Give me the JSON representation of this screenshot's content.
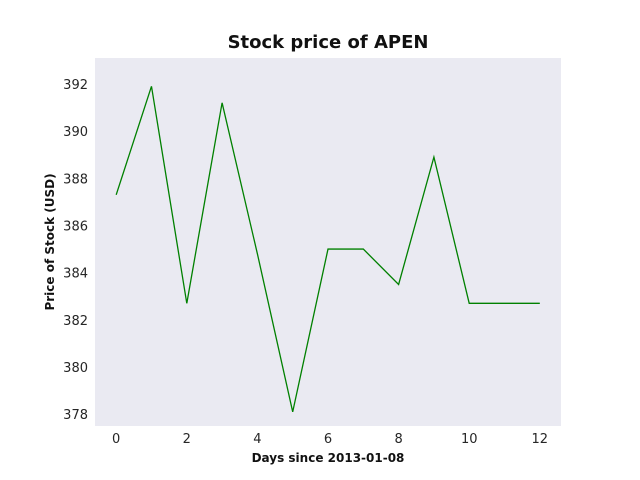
{
  "chart_data": {
    "type": "line",
    "title": "Stock price of APEN",
    "xlabel": "Days since 2013-01-08",
    "ylabel": "Price of Stock (USD)",
    "x": [
      0,
      1,
      2,
      3,
      4,
      5,
      6,
      7,
      8,
      9,
      10,
      11,
      12
    ],
    "series": [
      {
        "values": [
          387.3,
          391.9,
          382.7,
          391.2,
          384.8,
          378.1,
          385.0,
          385.0,
          383.5,
          388.9,
          382.7,
          382.7,
          382.7
        ],
        "color": "#008000"
      }
    ],
    "xlim": [
      -0.6,
      12.6
    ],
    "ylim": [
      377.5,
      393.1
    ],
    "xticks": [
      0,
      2,
      4,
      6,
      8,
      10,
      12
    ],
    "yticks": [
      378,
      380,
      382,
      384,
      386,
      388,
      390,
      392
    ],
    "grid": false,
    "legend": "none",
    "background": "#eaeaf2"
  }
}
